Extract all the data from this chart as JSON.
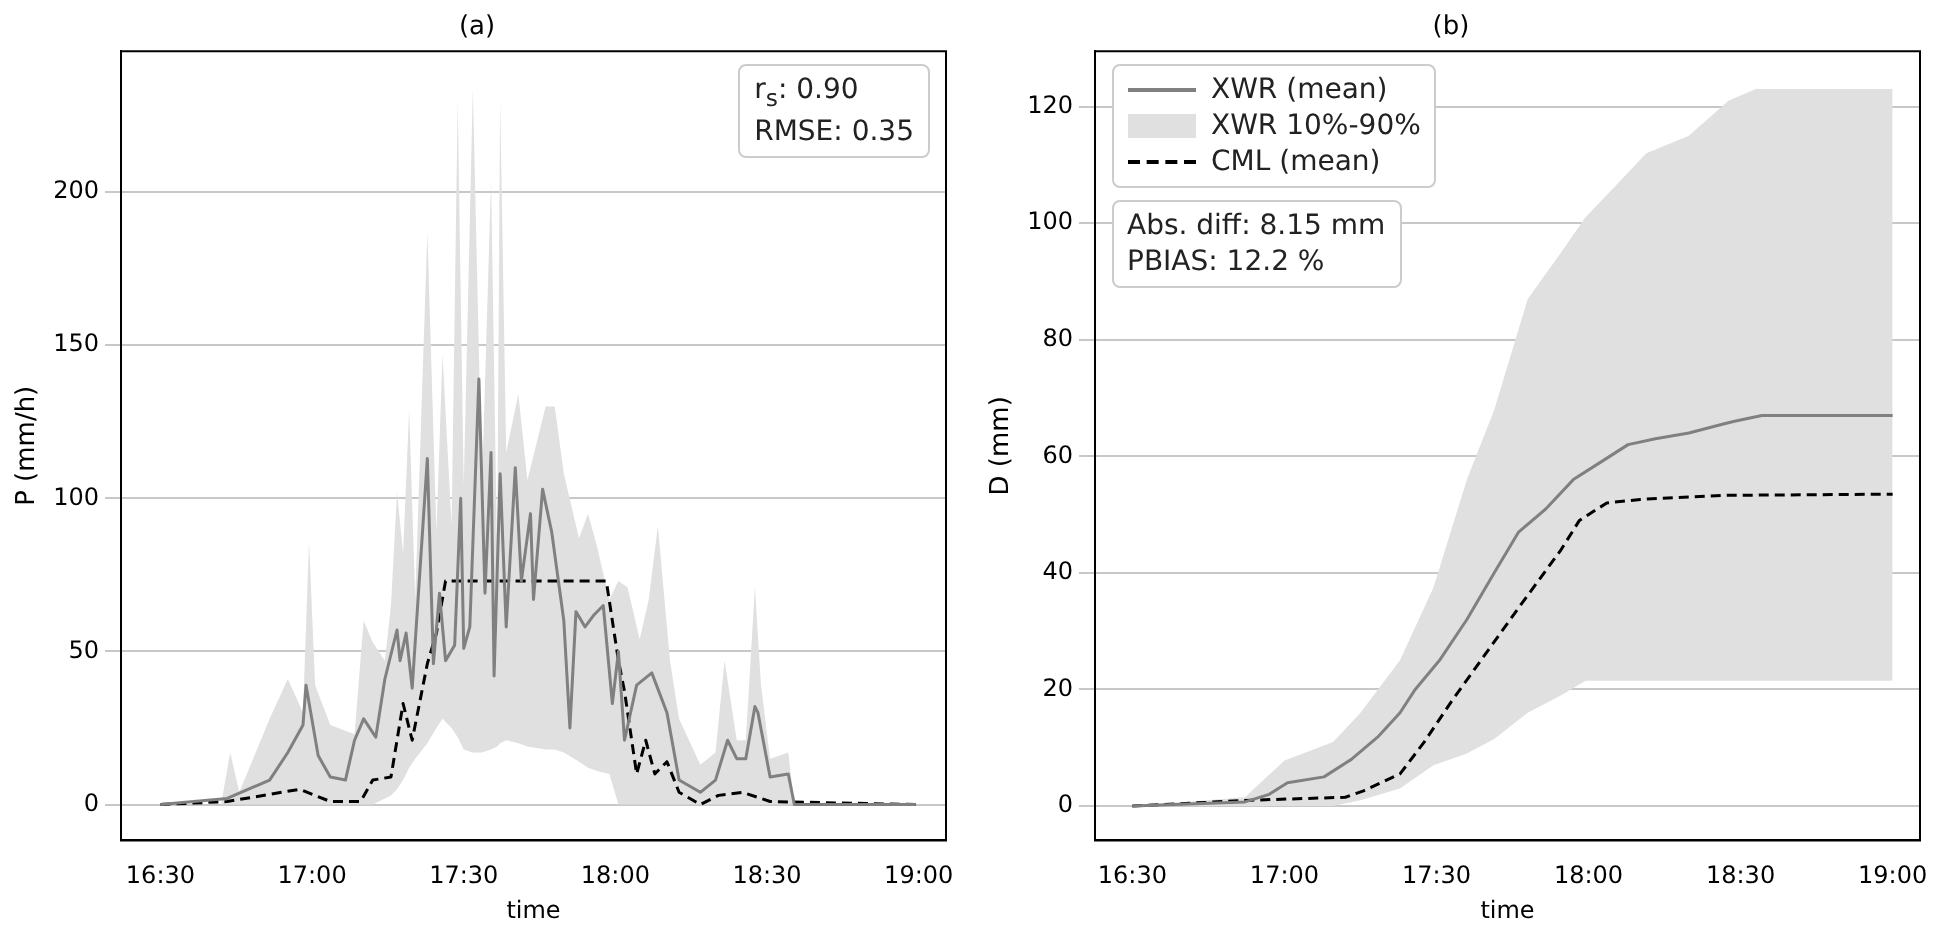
{
  "chart_data": [
    {
      "type": "line",
      "title": "(a)",
      "xlabel": "time",
      "ylabel": "P (mm/h)",
      "xlim": [
        16.37,
        19.09
      ],
      "xticks": [
        {
          "value": 16.5,
          "label": "16:30"
        },
        {
          "value": 17,
          "label": "17:00"
        },
        {
          "value": 17.5,
          "label": "17:30"
        },
        {
          "value": 18,
          "label": "18:00"
        },
        {
          "value": 18.5,
          "label": "18:30"
        },
        {
          "value": 19,
          "label": "19:00"
        }
      ],
      "ylim": [
        -11.7,
        246
      ],
      "yticks": [
        0,
        50,
        100,
        150,
        200
      ],
      "grid": "y",
      "marker": "none",
      "legend": false,
      "annotations": [
        "r$_{s}$: 0.90",
        "RMSE: 0.35"
      ],
      "series": [
        {
          "type": "area",
          "color": "#e0e0e0",
          "x": [
            16.5,
            16.7,
            16.73,
            16.76,
            16.86,
            16.92,
            16.97,
            16.99,
            17.01,
            17.06,
            17.14,
            17.17,
            17.2,
            17.24,
            17.26,
            17.28,
            17.3,
            17.32,
            17.34,
            17.38,
            17.41,
            17.43,
            17.46,
            17.48,
            17.5,
            17.53,
            17.56,
            17.59,
            17.61,
            17.62,
            17.64,
            17.68,
            17.71,
            17.77,
            17.8,
            17.83,
            17.88,
            17.91,
            17.94,
            17.98,
            18.01,
            18.04,
            18.08,
            18.11,
            18.14,
            18.18,
            18.21,
            18.28,
            18.33,
            18.36,
            18.4,
            18.43,
            18.46,
            18.48,
            18.51,
            18.57,
            18.59,
            18.99
          ],
          "lower": [
            0,
            0,
            0,
            0,
            0,
            0,
            0,
            0,
            0,
            0,
            0,
            0,
            0,
            2,
            3,
            5,
            8,
            12,
            15,
            20,
            25,
            28,
            25,
            22,
            18,
            17,
            17,
            18,
            19,
            20,
            21,
            20,
            19,
            18,
            18,
            17,
            14,
            12,
            11,
            10,
            0,
            0,
            0,
            0,
            0,
            0,
            0,
            0,
            0,
            0,
            0,
            0,
            0,
            0,
            0,
            0,
            0,
            0
          ],
          "upper": [
            0,
            0,
            17,
            4,
            28,
            41,
            30,
            86,
            39,
            26,
            23,
            60,
            53,
            47,
            65,
            102,
            82,
            129,
            67,
            187,
            89,
            147,
            91,
            230,
            104,
            234,
            104,
            204,
            82,
            230,
            115,
            134,
            106,
            130,
            130,
            108,
            87,
            95,
            84,
            67,
            73,
            71,
            54,
            67,
            91,
            47,
            28,
            13,
            17,
            47,
            21,
            21,
            71,
            39,
            15,
            17,
            0,
            0
          ],
          "values": [
            null,
            null,
            null,
            null,
            null,
            null,
            null,
            null,
            null,
            null,
            null,
            null,
            null,
            null,
            null,
            null,
            null,
            null,
            null,
            null,
            null,
            null,
            null,
            null,
            null,
            null,
            null,
            null,
            null,
            null,
            null,
            null,
            null,
            null,
            null,
            null,
            null,
            null,
            null,
            null,
            null,
            null,
            null,
            null,
            null,
            null,
            null,
            null,
            null,
            null,
            null,
            null,
            null,
            null,
            null,
            null,
            null,
            null
          ]
        },
        {
          "color": "#808080",
          "line_style": "solid",
          "x": [
            16.5,
            16.72,
            16.86,
            16.92,
            16.97,
            16.98,
            17.02,
            17.06,
            17.11,
            17.14,
            17.17,
            17.21,
            17.24,
            17.28,
            17.29,
            17.31,
            17.33,
            17.38,
            17.4,
            17.42,
            17.44,
            17.47,
            17.49,
            17.5,
            17.52,
            17.55,
            17.57,
            17.59,
            17.6,
            17.62,
            17.64,
            17.67,
            17.69,
            17.72,
            17.73,
            17.76,
            17.79,
            17.83,
            17.85,
            17.87,
            17.9,
            17.93,
            17.96,
            17.99,
            18.01,
            18.03,
            18.07,
            18.12,
            18.17,
            18.21,
            18.28,
            18.33,
            18.37,
            18.4,
            18.43,
            18.46,
            18.47,
            18.51,
            18.57,
            18.59,
            18.99
          ],
          "values": [
            0,
            2,
            8,
            17,
            26,
            39,
            16,
            9,
            8,
            21,
            28,
            22,
            41,
            57,
            47,
            56,
            38,
            113,
            46,
            69,
            47,
            52,
            100,
            51,
            58,
            139,
            69,
            115,
            42,
            108,
            58,
            110,
            73,
            95,
            67,
            103,
            89,
            60,
            25,
            63,
            58,
            62,
            65,
            33,
            50,
            21,
            39,
            43,
            30,
            8,
            4,
            8,
            21,
            15,
            15,
            32,
            30,
            9,
            10,
            0,
            0
          ]
        },
        {
          "color": "#000000",
          "line_style": "dashed",
          "x": [
            16.5,
            16.72,
            16.96,
            17.06,
            17.16,
            17.2,
            17.26,
            17.3,
            17.33,
            17.38,
            17.41,
            17.44,
            17.97,
            18.01,
            18.03,
            18.07,
            18.1,
            18.13,
            18.17,
            18.21,
            18.28,
            18.34,
            18.42,
            18.51,
            18.99
          ],
          "values": [
            0,
            1,
            5,
            1,
            1,
            8,
            9,
            33,
            21,
            46,
            56,
            73,
            73,
            47,
            37,
            10,
            21,
            10,
            14,
            4,
            0,
            3,
            4,
            1,
            0
          ]
        }
      ]
    },
    {
      "type": "line",
      "title": "(b)",
      "xlabel": "time",
      "ylabel": "D (mm)",
      "xlim": [
        16.377,
        19.09
      ],
      "xticks": [
        {
          "value": 16.5,
          "label": "16:30"
        },
        {
          "value": 17,
          "label": "17:00"
        },
        {
          "value": 17.5,
          "label": "17:30"
        },
        {
          "value": 18,
          "label": "18:00"
        },
        {
          "value": 18.5,
          "label": "18:30"
        },
        {
          "value": 19,
          "label": "19:00"
        }
      ],
      "ylim": [
        -5.9,
        129.5
      ],
      "yticks": [
        0,
        20,
        40,
        60,
        80,
        100,
        120
      ],
      "grid": "y",
      "marker": "none",
      "legend": "top left",
      "annotations": [
        "Abs. diff: 8.15 mm",
        "PBIAS: 12.2 %"
      ],
      "series": [
        {
          "name": "XWR (mean)",
          "color": "#808080",
          "line_style": "solid",
          "x": [
            16.5,
            16.87,
            16.95,
            17.01,
            17.13,
            17.22,
            17.31,
            17.38,
            17.43,
            17.51,
            17.6,
            17.69,
            17.77,
            17.86,
            17.95,
            18.04,
            18.13,
            18.22,
            18.33,
            18.44,
            18.48,
            18.57,
            19.0
          ],
          "values": [
            0,
            0.7,
            2,
            4,
            5,
            8,
            12,
            16,
            20,
            25,
            32,
            40,
            47,
            51,
            56,
            59,
            62,
            63,
            64,
            65.5,
            66,
            67,
            67
          ]
        },
        {
          "name": "XWR 10%-90%",
          "type": "area",
          "color": "#e0e0e0",
          "x": [
            16.5,
            16.87,
            17.0,
            17.16,
            17.25,
            17.38,
            17.49,
            17.6,
            17.69,
            17.8,
            17.91,
            17.99,
            18.1,
            18.19,
            18.33,
            18.46,
            18.55,
            19.0
          ],
          "lower": [
            0,
            0,
            0,
            0,
            1,
            3,
            7,
            9,
            11.5,
            16,
            19,
            21.5,
            21.5,
            21.5,
            21.5,
            21.5,
            21.5,
            21.5
          ],
          "upper": [
            0,
            1.5,
            7.8,
            11,
            16,
            25,
            37.5,
            56,
            68,
            87,
            95,
            101,
            107,
            112,
            115,
            121,
            123,
            123
          ],
          "values": [
            null,
            null,
            null,
            null,
            null,
            null,
            null,
            null,
            null,
            null,
            null,
            null,
            null,
            null,
            null,
            null,
            null,
            null
          ]
        },
        {
          "name": "CML (mean)",
          "color": "#000000",
          "line_style": "dashed",
          "x": [
            16.5,
            16.89,
            17.2,
            17.26,
            17.38,
            17.46,
            17.55,
            17.66,
            17.77,
            17.91,
            17.97,
            18.06,
            18.17,
            18.44,
            19.0
          ],
          "values": [
            0,
            1,
            1.5,
            2.6,
            5.5,
            11,
            18,
            26,
            34,
            44,
            49,
            52,
            52.6,
            53.3,
            53.5
          ]
        }
      ]
    }
  ]
}
